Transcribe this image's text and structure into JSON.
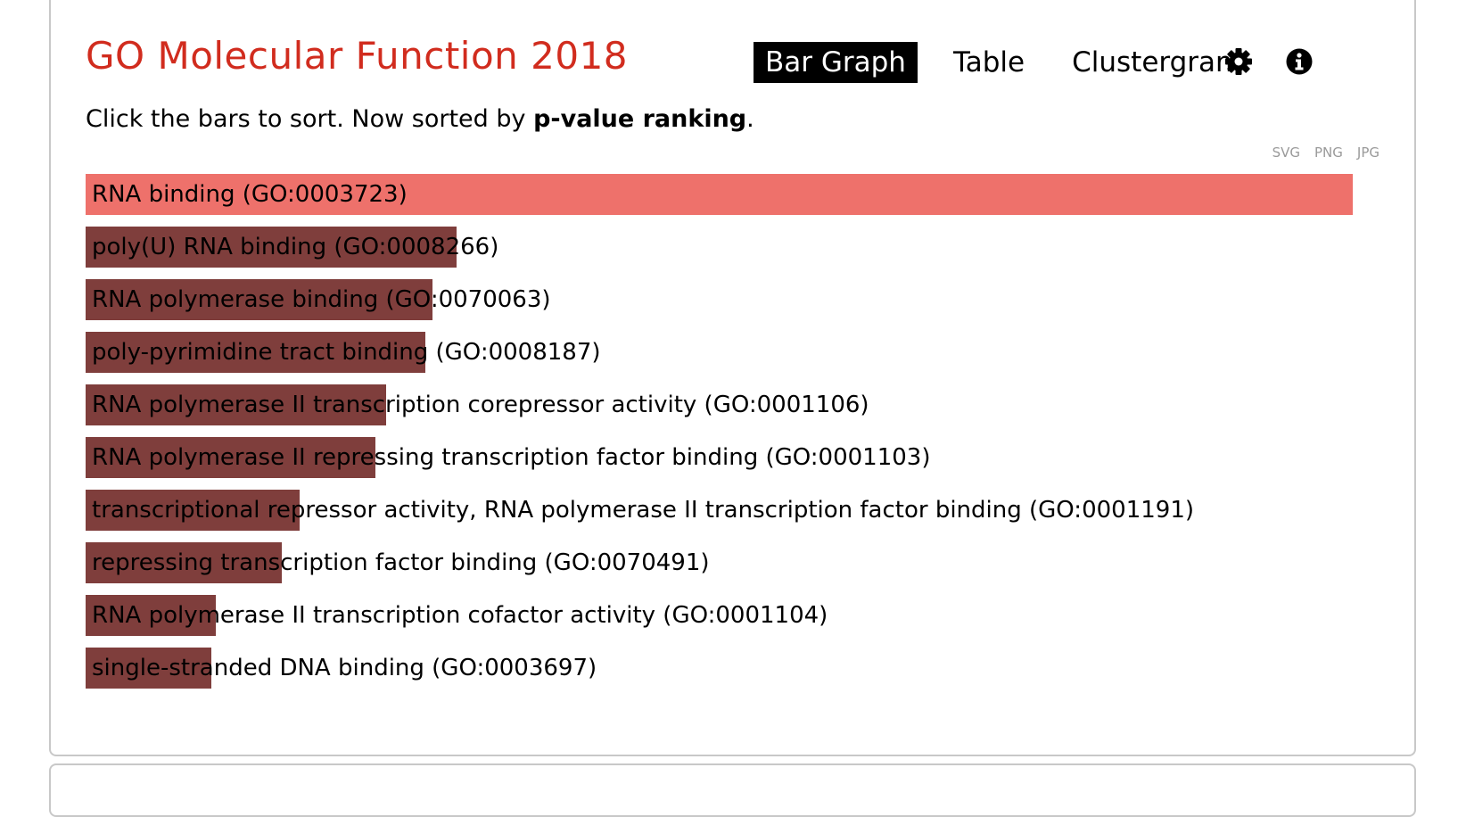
{
  "title": "GO Molecular Function 2018",
  "nav": {
    "tabs": [
      {
        "label": "Bar Graph",
        "active": true
      },
      {
        "label": "Table",
        "active": false
      },
      {
        "label": "Clustergram",
        "active": false
      }
    ],
    "settings_icon": "gear-icon",
    "info_icon": "info-circle-icon"
  },
  "subtitle": {
    "prefix": "Click the bars to sort. Now sorted by ",
    "emphasis": "p-value ranking",
    "suffix": "."
  },
  "exports": [
    "SVG",
    "PNG",
    "JPG"
  ],
  "colors": {
    "title": "#d12c1e",
    "top_bar": "#ee716b",
    "bars": "#7f3e3c"
  },
  "chart_data": {
    "type": "bar",
    "orientation": "horizontal",
    "categories": [
      "RNA binding (GO:0003723)",
      "poly(U) RNA binding (GO:0008266)",
      "RNA polymerase binding (GO:0070063)",
      "poly-pyrimidine tract binding (GO:0008187)",
      "RNA polymerase II transcription corepressor activity (GO:0001106)",
      "RNA polymerase II repressing transcription factor binding (GO:0001103)",
      "transcriptional repressor activity, RNA polymerase II transcription factor binding (GO:0001191)",
      "repressing transcription factor binding (GO:0070491)",
      "RNA polymerase II transcription cofactor activity (GO:0001104)",
      "single-stranded DNA binding (GO:0003697)"
    ],
    "values": [
      1.0,
      0.293,
      0.274,
      0.268,
      0.237,
      0.229,
      0.169,
      0.155,
      0.103,
      0.099
    ],
    "xlim": [
      0,
      1
    ],
    "grid": false,
    "legend": "none"
  }
}
